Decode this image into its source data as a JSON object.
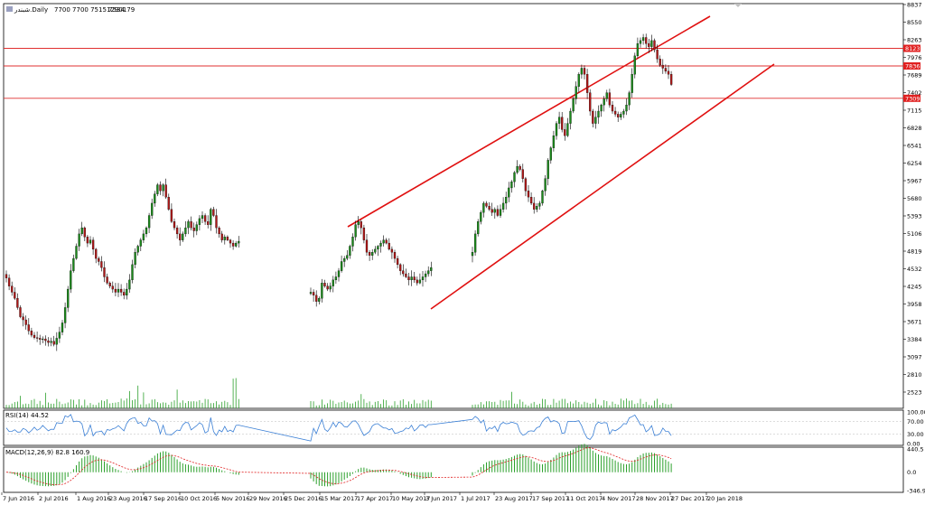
{
  "header": {
    "symbol": "شبندر.Daily",
    "ohlc": "7700 7700 7515 7534",
    "volume": "1290179"
  },
  "colors": {
    "background": "#ffffff",
    "bull_candle": "#1a8a1a",
    "bear_candle": "#b01818",
    "hline": "#e03030",
    "channel": "#e01010",
    "volume": "#2ca02c",
    "rsi_line": "#3a7fd5",
    "macd_hist": "#2ca02c",
    "macd_signal": "#e02020",
    "price_tag": "#e02020"
  },
  "price_axis": {
    "ticks": [
      "8837",
      "8550",
      "8263",
      "7976",
      "7689",
      "7402",
      "7115",
      "6828",
      "6541",
      "6254",
      "5967",
      "5680",
      "5393",
      "5106",
      "4819",
      "4532",
      "4245",
      "3958",
      "3671",
      "3384",
      "3097",
      "2810",
      "2523"
    ],
    "tags": [
      "8123",
      "7836",
      "7309"
    ]
  },
  "rsi_panel": {
    "label": "RSI(14) 44.52",
    "ticks": [
      "100.00",
      "70.00",
      "30.00",
      "0.00"
    ]
  },
  "macd_panel": {
    "label": "MACD(12,26,9) 82.8 160.9",
    "ticks": [
      "440.5",
      "0.0",
      "-346.9"
    ]
  },
  "time_axis": {
    "labels": [
      "7 Jun 2016",
      "2 Jul 2016",
      "1 Aug 2016",
      "23 Aug 2016",
      "17 Sep 2016",
      "10 Oct 2016",
      "5 Nov 2016",
      "29 Nov 2016",
      "25 Dec 2016",
      "15 Mar 2017",
      "17 Apr 2017",
      "10 May 2017",
      "3 Jun 2017",
      "1 Jul 2017",
      "23 Aug 2017",
      "17 Sep 2017",
      "11 Oct 2017",
      "4 Nov 2017",
      "28 Nov 2017",
      "27 Dec 2017",
      "20 Jan 2018"
    ]
  },
  "chart_data": {
    "type": "candlestick",
    "price_levels": [
      8123,
      7836,
      7309
    ],
    "closes": [
      4380,
      4250,
      4150,
      4050,
      3900,
      3750,
      3700,
      3620,
      3520,
      3450,
      3410,
      3400,
      3380,
      3390,
      3360,
      3330,
      3350,
      3300,
      3400,
      3500,
      3650,
      3900,
      4200,
      4500,
      4700,
      4900,
      5100,
      5200,
      5050,
      4950,
      5000,
      4850,
      4700,
      4650,
      4550,
      4400,
      4300,
      4250,
      4200,
      4150,
      4200,
      4150,
      4100,
      4200,
      4350,
      4600,
      4800,
      4900,
      5000,
      5100,
      5200,
      5400,
      5600,
      5750,
      5900,
      5800,
      5900,
      5700,
      5500,
      5300,
      5200,
      5100,
      5000,
      5100,
      5200,
      5300,
      5200,
      5150,
      5250,
      5350,
      5400,
      5300,
      5250,
      5500,
      5400,
      5200,
      5100,
      5000,
      5050,
      5000,
      4950,
      4900,
      4950,
      4980,
      4150,
      4100,
      4000,
      4050,
      4300,
      4250,
      4200,
      4250,
      4350,
      4400,
      4500,
      4650,
      4700,
      4750,
      4900,
      5050,
      5250,
      5300,
      5200,
      5000,
      4800,
      4750,
      4800,
      4850,
      4900,
      4950,
      5000,
      4950,
      4850,
      4800,
      4700,
      4600,
      4500,
      4450,
      4400,
      4350,
      4400,
      4350,
      4300,
      4350,
      4400,
      4450,
      4500,
      4550,
      4800,
      5100,
      5300,
      5450,
      5600,
      5550,
      5500,
      5450,
      5500,
      5400,
      5500,
      5600,
      5700,
      5850,
      5950,
      6100,
      6200,
      6150,
      6000,
      5800,
      5700,
      5600,
      5500,
      5550,
      5600,
      5800,
      6000,
      6300,
      6500,
      6700,
      6900,
      7000,
      6800,
      6700,
      6900,
      7100,
      7300,
      7500,
      7700,
      7800,
      7700,
      7400,
      7100,
      6900,
      7000,
      7100,
      7200,
      7300,
      7400,
      7200,
      7100,
      7050,
      7000,
      7050,
      7100,
      7200,
      7400,
      7700,
      8000,
      8200,
      8250,
      8300,
      8200,
      8150,
      8250,
      8100,
      7950,
      7850,
      7800,
      7750,
      7700,
      7534
    ]
  }
}
